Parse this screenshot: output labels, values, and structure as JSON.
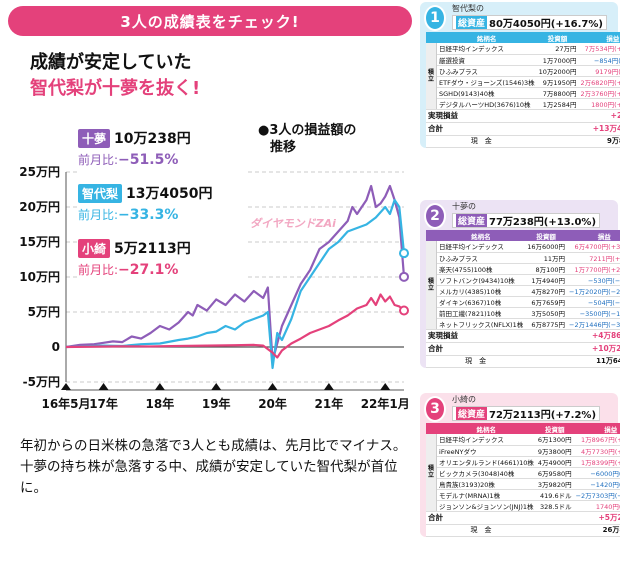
{
  "banner": "3人の成績表をチェック!",
  "headline1": "成績が安定していた",
  "headline2": "智代梨が十夢を抜く!",
  "legend_title_1": "●3人の損益額の",
  "legend_title_2": "推移",
  "watermark": "ダイヤモンドZAi",
  "summaries": [
    {
      "name": "十夢",
      "amount": "10万238円",
      "change_label": "前月比:",
      "change": "−51.5%",
      "color": "#8e5db8"
    },
    {
      "name": "智代梨",
      "amount": "13万4050円",
      "change_label": "前月比:",
      "change": "−33.3%",
      "color": "#36b4e3"
    },
    {
      "name": "小綺",
      "amount": "5万2113円",
      "change_label": "前月比:",
      "change": "−27.1%",
      "color": "#e4417b"
    }
  ],
  "chart_data": {
    "type": "line",
    "y_ticks": [
      "25万円",
      "20万円",
      "15万円",
      "10万円",
      "5万円",
      "0",
      "-5万円"
    ],
    "y_values": [
      250000,
      200000,
      150000,
      100000,
      50000,
      0,
      -50000
    ],
    "ylim": [
      -50000,
      250000
    ],
    "x_ticks": [
      "16年5月",
      "17年",
      "18年",
      "19年",
      "20年",
      "21年",
      "22年1月"
    ],
    "x_tick_pos": [
      0,
      8,
      20,
      32,
      44,
      56,
      68
    ],
    "grid": true,
    "series": [
      {
        "name": "十夢",
        "color": "#8e5db8",
        "values": [
          [
            0,
            0
          ],
          [
            3,
            3000
          ],
          [
            6,
            4000
          ],
          [
            8,
            6000
          ],
          [
            10,
            8000
          ],
          [
            12,
            7000
          ],
          [
            14,
            15000
          ],
          [
            16,
            12000
          ],
          [
            18,
            20000
          ],
          [
            20,
            30000
          ],
          [
            22,
            25000
          ],
          [
            24,
            35000
          ],
          [
            26,
            50000
          ],
          [
            27,
            45000
          ],
          [
            28,
            60000
          ],
          [
            30,
            52000
          ],
          [
            32,
            68000
          ],
          [
            34,
            60000
          ],
          [
            36,
            75000
          ],
          [
            38,
            65000
          ],
          [
            40,
            80000
          ],
          [
            42,
            70000
          ],
          [
            43,
            85000
          ],
          [
            44,
            -20000
          ],
          [
            45,
            5000
          ],
          [
            46,
            30000
          ],
          [
            48,
            60000
          ],
          [
            50,
            90000
          ],
          [
            52,
            110000
          ],
          [
            54,
            140000
          ],
          [
            56,
            150000
          ],
          [
            58,
            165000
          ],
          [
            60,
            180000
          ],
          [
            61,
            200000
          ],
          [
            62,
            190000
          ],
          [
            64,
            210000
          ],
          [
            65,
            230000
          ],
          [
            66,
            200000
          ],
          [
            67,
            205000
          ],
          [
            68,
            215000
          ],
          [
            69,
            230000
          ],
          [
            70,
            210000
          ],
          [
            71,
            185000
          ],
          [
            72,
            100238
          ]
        ]
      },
      {
        "name": "智代梨",
        "color": "#36b4e3",
        "values": [
          [
            0,
            0
          ],
          [
            4,
            1000
          ],
          [
            8,
            2000
          ],
          [
            12,
            1500
          ],
          [
            16,
            4000
          ],
          [
            20,
            5000
          ],
          [
            24,
            10000
          ],
          [
            26,
            12000
          ],
          [
            28,
            15000
          ],
          [
            30,
            20000
          ],
          [
            32,
            22000
          ],
          [
            34,
            30000
          ],
          [
            36,
            25000
          ],
          [
            38,
            35000
          ],
          [
            40,
            40000
          ],
          [
            42,
            45000
          ],
          [
            43,
            50000
          ],
          [
            44,
            -30000
          ],
          [
            45,
            20000
          ],
          [
            46,
            10000
          ],
          [
            48,
            40000
          ],
          [
            50,
            80000
          ],
          [
            52,
            100000
          ],
          [
            54,
            120000
          ],
          [
            56,
            140000
          ],
          [
            58,
            150000
          ],
          [
            60,
            165000
          ],
          [
            62,
            170000
          ],
          [
            64,
            175000
          ],
          [
            66,
            185000
          ],
          [
            68,
            200000
          ],
          [
            69,
            190000
          ],
          [
            70,
            210000
          ],
          [
            71,
            200000
          ],
          [
            72,
            134050
          ]
        ]
      },
      {
        "name": "小綺",
        "color": "#e4417b",
        "values": [
          [
            0,
            0
          ],
          [
            6,
            500
          ],
          [
            12,
            1000
          ],
          [
            18,
            800
          ],
          [
            24,
            1500
          ],
          [
            30,
            2000
          ],
          [
            36,
            2500
          ],
          [
            40,
            3000
          ],
          [
            42,
            2000
          ],
          [
            44,
            -8000
          ],
          [
            45,
            -15000
          ],
          [
            46,
            -5000
          ],
          [
            48,
            5000
          ],
          [
            50,
            12000
          ],
          [
            52,
            20000
          ],
          [
            54,
            25000
          ],
          [
            56,
            30000
          ],
          [
            58,
            38000
          ],
          [
            60,
            45000
          ],
          [
            62,
            55000
          ],
          [
            64,
            60000
          ],
          [
            65,
            70000
          ],
          [
            66,
            60000
          ],
          [
            67,
            75000
          ],
          [
            68,
            65000
          ],
          [
            69,
            72000
          ],
          [
            70,
            60000
          ],
          [
            71,
            58000
          ],
          [
            72,
            52113
          ]
        ]
      }
    ]
  },
  "caption": "年初からの日米株の急落で3人とも成績は、先月比でマイナス。十夢の持ち株が急落する中、成績が安定していた智代梨が首位に。",
  "panels": [
    {
      "rank": "1",
      "rank_suffix": "位",
      "name": "智代梨の",
      "total_label": "総資産",
      "total": "80万4050円(+16.7%)",
      "color": "#36b4e3",
      "bg": "#d7eff9",
      "grp": "積立",
      "headers": [
        "銘柄名",
        "投資額",
        "損益"
      ],
      "rows": [
        {
          "n": "日経平均インデックス",
          "i": "27万円",
          "p": "7万534円(+29.9%)",
          "s": "pos"
        },
        {
          "n": "厳選投資",
          "i": "1万7000円",
          "p": "−854円(−4.7%)",
          "s": "neg"
        },
        {
          "n": "ひふみプラス",
          "i": "10万2000円",
          "p": "9179円(+7.9%)",
          "s": "pos"
        },
        {
          "n": "ETFダウ・ジョーンズ(1546)3株",
          "i": "9万1950円",
          "p": "2万6820円(+29.2%)",
          "s": "pos"
        },
        {
          "n": "SGHD(9143)40株",
          "i": "7万8800円",
          "p": "2万3760円(+33.6%)",
          "s": "pos"
        },
        {
          "n": "デジタルハーツHD(3676)10株",
          "i": "1万2584円",
          "p": "1800円(+14.3%)",
          "s": "pos"
        }
      ],
      "extras": [
        {
          "k": "実現損益",
          "v": "+2811円"
        },
        {
          "k": "合計",
          "v": "+13万4050円"
        }
      ],
      "cash_label": "現　金",
      "cash": "9万8311円"
    },
    {
      "rank": "2",
      "rank_suffix": "位",
      "name": "十夢の",
      "total_label": "総資産",
      "total": "77万238円(+13.0%)",
      "color": "#8e5db8",
      "bg": "#ece3f4",
      "grp": "積立",
      "headers": [
        "銘柄名",
        "投資額",
        "損益"
      ],
      "rows": [
        {
          "n": "日経平均インデックス",
          "i": "16万6000円",
          "p": "6万4700円(+39.0%)",
          "s": "pos"
        },
        {
          "n": "ひふみプラス",
          "i": "11万円",
          "p": "7211円(+6.5%)",
          "s": "pos"
        },
        {
          "n": "楽天(4755)100株",
          "i": "8万100円",
          "p": "1万7700円(+22.1%)",
          "s": "pos"
        },
        {
          "n": "ソフトバンク(9434)10株",
          "i": "1万4940円",
          "p": "−530円(−3.5%)",
          "s": "neg"
        },
        {
          "n": "メルカリ(4385)10株",
          "i": "4万8270円",
          "p": "−1万2020円(−24.9%)",
          "s": "neg"
        },
        {
          "n": "ダイキン(6367)10株",
          "i": "6万7659円",
          "p": "−504円(−0.7%)",
          "s": "neg"
        },
        {
          "n": "前田工繊(7821)10株",
          "i": "3万5050円",
          "p": "−3500円(−10.0%)",
          "s": "neg"
        },
        {
          "n": "ネットフリックス(NFLX)1株",
          "i": "6万8775円",
          "p": "−2万1446円(−31.2%)",
          "s": "neg"
        }
      ],
      "extras": [
        {
          "k": "実現損益",
          "v": "+4万8626円"
        },
        {
          "k": "合計",
          "v": "+10万238円"
        }
      ],
      "cash_label": "現　金",
      "cash": "11万6485円"
    },
    {
      "rank": "3",
      "rank_suffix": "位",
      "name": "小綺の",
      "total_label": "総資産",
      "total": "72万2113円(+7.2%)",
      "color": "#e4417b",
      "bg": "#fbe0ea",
      "grp": "積立",
      "headers": [
        "銘柄名",
        "投資額",
        "損益"
      ],
      "rows": [
        {
          "n": "日経平均インデックス",
          "i": "6万1300円",
          "p": "1万8967円(+30.9%)",
          "s": "pos"
        },
        {
          "n": "iFreeNYダウ",
          "i": "9万3800円",
          "p": "4万7730円(+50.9%)",
          "s": "pos"
        },
        {
          "n": "オリエンタルランド(4661)10株",
          "i": "4万4900円",
          "p": "1万8399円(+40.1%)",
          "s": "pos"
        },
        {
          "n": "ビックカメラ(3048)40株",
          "i": "6万9580円",
          "p": "−6000円(−8.6%)",
          "s": "neg"
        },
        {
          "n": "鳥貴族(3193)20株",
          "i": "3万9820円",
          "p": "−1420円(−3.6%)",
          "s": "neg"
        },
        {
          "n": "モデルナ(MRNA)1株",
          "i": "419.6ドル",
          "p": "−2万7303円(−59.2%)",
          "s": "neg"
        },
        {
          "n": "ジョンソン&ジョンソン(JNJ)1株",
          "i": "328.5ドル",
          "p": "1740円(+4.8%)",
          "s": "pos"
        }
      ],
      "extras": [
        {
          "k": "合計",
          "v": "+5万2113円"
        }
      ],
      "cash_label": "現　金",
      "cash": "26万8660円"
    }
  ]
}
